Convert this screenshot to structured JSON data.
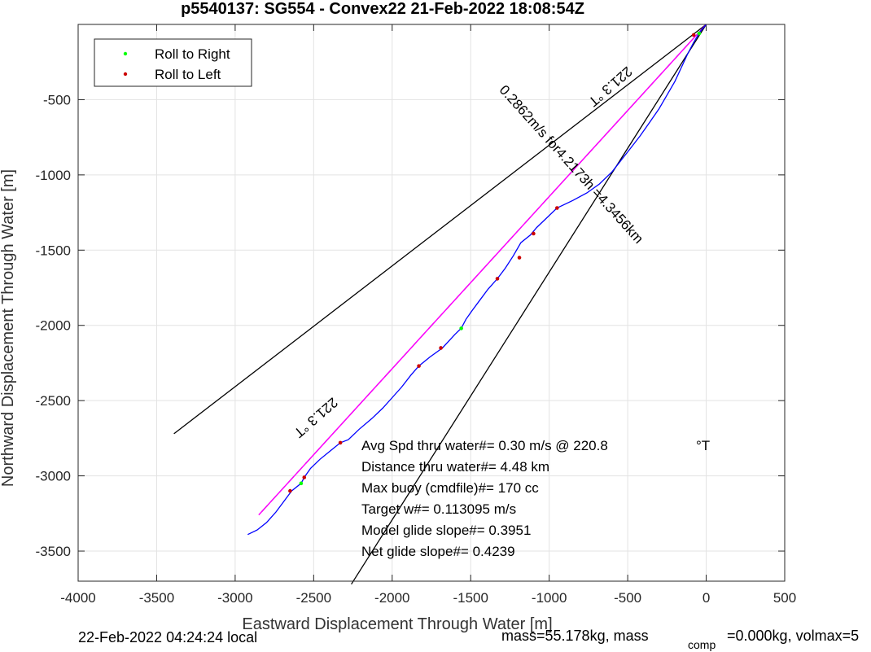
{
  "chart_data": {
    "type": "line",
    "title": "p5540137: SG554 - Convex22 21-Feb-2022 18:08:54Z",
    "xlabel": "Eastward Displacement Through Water [m]",
    "ylabel": "Northward Displacement Through Water [m]",
    "xlim": [
      -4000,
      500
    ],
    "ylim": [
      -3700,
      0
    ],
    "xticks": [
      -4000,
      -3500,
      -3000,
      -2500,
      -2000,
      -1500,
      -1000,
      -500,
      0,
      500
    ],
    "yticks": [
      -3500,
      -3000,
      -2500,
      -2000,
      -1500,
      -1000,
      -500
    ],
    "grid": true,
    "legend": {
      "placement": "top-left",
      "entries": [
        {
          "label": "Roll to Right",
          "color": "#00ff00"
        },
        {
          "label": "Roll to Left",
          "color": "#cc0000"
        }
      ]
    },
    "colors": {
      "track": "#0000ff",
      "heading": "#ff00ff",
      "cone": "#000000",
      "right": "#00ff00",
      "left": "#cc0000"
    },
    "track": [
      [
        0,
        0
      ],
      [
        -40,
        -50
      ],
      [
        -80,
        -120
      ],
      [
        -120,
        -200
      ],
      [
        -160,
        -290
      ],
      [
        -200,
        -380
      ],
      [
        -250,
        -470
      ],
      [
        -300,
        -560
      ],
      [
        -360,
        -650
      ],
      [
        -420,
        -740
      ],
      [
        -480,
        -820
      ],
      [
        -540,
        -900
      ],
      [
        -600,
        -980
      ],
      [
        -680,
        -1060
      ],
      [
        -760,
        -1120
      ],
      [
        -850,
        -1170
      ],
      [
        -950,
        -1220
      ],
      [
        -1020,
        -1290
      ],
      [
        -1080,
        -1350
      ],
      [
        -1120,
        -1400
      ],
      [
        -1180,
        -1450
      ],
      [
        -1230,
        -1540
      ],
      [
        -1280,
        -1620
      ],
      [
        -1330,
        -1690
      ],
      [
        -1390,
        -1760
      ],
      [
        -1440,
        -1830
      ],
      [
        -1490,
        -1900
      ],
      [
        -1530,
        -1960
      ],
      [
        -1560,
        -2020
      ],
      [
        -1600,
        -2060
      ],
      [
        -1680,
        -2150
      ],
      [
        -1760,
        -2210
      ],
      [
        -1830,
        -2270
      ],
      [
        -1880,
        -2330
      ],
      [
        -1940,
        -2410
      ],
      [
        -2000,
        -2480
      ],
      [
        -2060,
        -2550
      ],
      [
        -2130,
        -2620
      ],
      [
        -2210,
        -2690
      ],
      [
        -2280,
        -2760
      ],
      [
        -2330,
        -2780
      ],
      [
        -2390,
        -2830
      ],
      [
        -2460,
        -2890
      ],
      [
        -2520,
        -2950
      ],
      [
        -2560,
        -3010
      ],
      [
        -2580,
        -3050
      ],
      [
        -2640,
        -3100
      ],
      [
        -2690,
        -3170
      ],
      [
        -2740,
        -3240
      ],
      [
        -2800,
        -3310
      ],
      [
        -2860,
        -3360
      ],
      [
        -2920,
        -3390
      ]
    ],
    "heading_line": [
      [
        0,
        0
      ],
      [
        -2850,
        -3260
      ]
    ],
    "cone_lines": [
      [
        [
          0,
          0
        ],
        [
          -3390,
          -2720
        ]
      ],
      [
        [
          0,
          0
        ],
        [
          -2260,
          -3720
        ]
      ]
    ],
    "right_points": [
      [
        -1560,
        -2020
      ],
      [
        -2580,
        -3050
      ],
      [
        -45,
        -60
      ]
    ],
    "left_points": [
      [
        -80,
        -70
      ],
      [
        -950,
        -1220
      ],
      [
        -1100,
        -1390
      ],
      [
        -1190,
        -1550
      ],
      [
        -1330,
        -1690
      ],
      [
        -1690,
        -2150
      ],
      [
        -1830,
        -2270
      ],
      [
        -2330,
        -2780
      ],
      [
        -2560,
        -3010
      ],
      [
        -2650,
        -3100
      ]
    ],
    "heading_labels": [
      {
        "text": "221.3 °T",
        "x": -2505,
        "y": -2590,
        "angle": 139
      },
      {
        "text": "221.3 °T",
        "x": -630,
        "y": -390,
        "angle": 139
      }
    ],
    "rate_label": {
      "text": "0.2862m/s for4.2173h =4.3456km",
      "x": -880,
      "y": -950,
      "angle": 48
    },
    "annotations": {
      "avg": "Avg Spd thru water#=  0.30 m/s @ 220.8",
      "avg_unit": "°T",
      "dist": "Distance thru water#=  4.48 km",
      "buoy": "Max buoy (cmdfile)#= 170 cc",
      "target": "Target w#= 0.113095 m/s",
      "model": "Model glide slope#= 0.3951",
      "net": "Net glide slope#= 0.4239"
    },
    "footer": {
      "local": "22-Feb-2022 04:24:24 local",
      "mass": "mass=55.178kg, mass",
      "comp": "comp",
      "rest": "=0.000kg, volmax=5"
    }
  }
}
